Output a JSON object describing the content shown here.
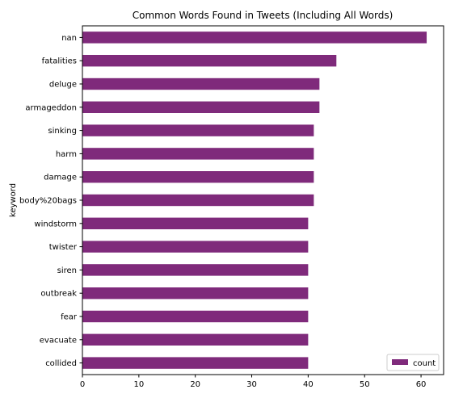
{
  "chart_data": {
    "type": "bar",
    "orientation": "horizontal",
    "title": "Common Words Found in Tweets (Including All Words)",
    "xlabel": "",
    "ylabel": "keyword",
    "categories": [
      "nan",
      "fatalities",
      "deluge",
      "armageddon",
      "sinking",
      "harm",
      "damage",
      "body%20bags",
      "windstorm",
      "twister",
      "siren",
      "outbreak",
      "fear",
      "evacuate",
      "collided"
    ],
    "series": [
      {
        "name": "count",
        "values": [
          61,
          45,
          42,
          42,
          41,
          41,
          41,
          41,
          40,
          40,
          40,
          40,
          40,
          40,
          40
        ]
      }
    ],
    "xlim": [
      0,
      64
    ],
    "xticks": [
      0,
      10,
      20,
      30,
      40,
      50,
      60
    ],
    "grid": false,
    "legend": "bottom-right",
    "bar_color": "#7f2a7b"
  }
}
